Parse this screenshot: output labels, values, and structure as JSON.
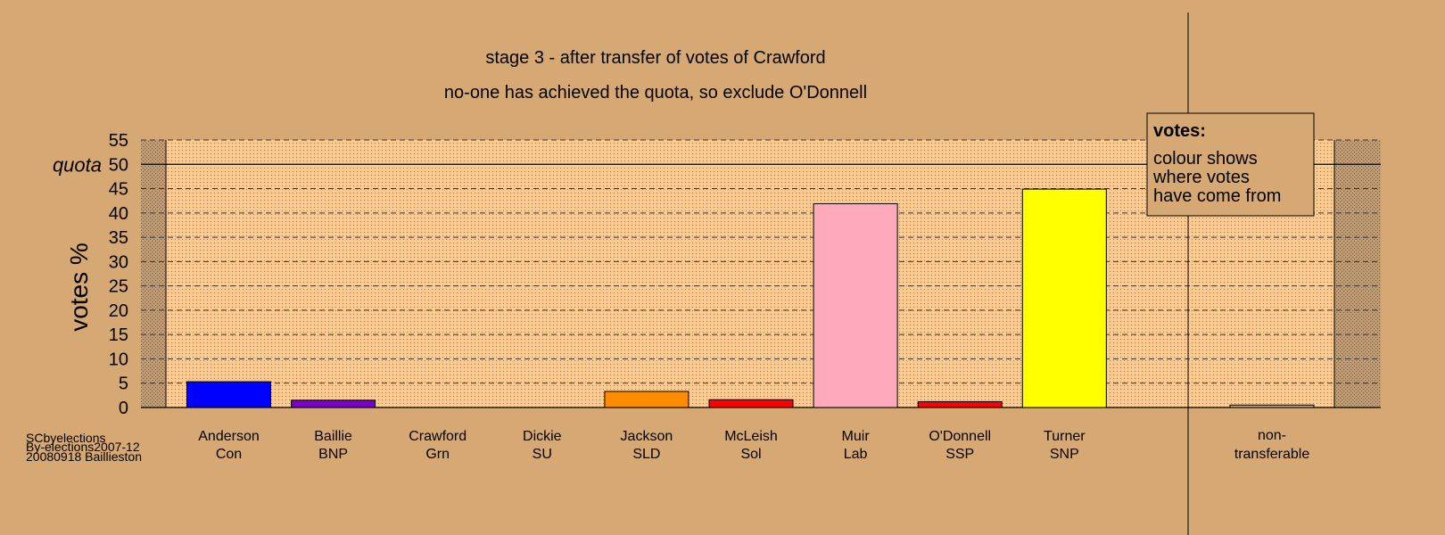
{
  "chart_data": {
    "type": "bar",
    "title": "stage 3 - after transfer of votes of Crawford",
    "subtitle": "no-one has achieved the quota, so exclude O'Donnell",
    "ylabel": "votes %",
    "ylim": [
      0,
      55
    ],
    "yticks": [
      0,
      5,
      10,
      15,
      20,
      25,
      30,
      35,
      40,
      45,
      50,
      55
    ],
    "quota": {
      "value": 50,
      "label": "quota"
    },
    "grid": true,
    "categories": [
      {
        "name": "Anderson",
        "party": "Con",
        "value": 5.3,
        "color": "#0000FF"
      },
      {
        "name": "Baillie",
        "party": "BNP",
        "value": 1.5,
        "color": "#7B00CC"
      },
      {
        "name": "Crawford",
        "party": "Grn",
        "value": 0,
        "color": "#00AA00"
      },
      {
        "name": "Dickie",
        "party": "SU",
        "value": 0,
        "color": "#FF0000"
      },
      {
        "name": "Jackson",
        "party": "SLD",
        "value": 3.3,
        "color": "#FF8C00"
      },
      {
        "name": "McLeish",
        "party": "Sol",
        "value": 1.6,
        "color": "#FF0000"
      },
      {
        "name": "Muir",
        "party": "Lab",
        "value": 41.9,
        "color": "#FFAABB"
      },
      {
        "name": "O'Donnell",
        "party": "SSP",
        "value": 1.2,
        "color": "#FF0000"
      },
      {
        "name": "Turner",
        "party": "SNP",
        "value": 44.9,
        "color": "#FFFF00"
      }
    ],
    "nontransferable": {
      "line1": "non-",
      "line2": "transferable",
      "value": 0.5,
      "color": "#D5A874"
    },
    "legend": {
      "title": "votes:",
      "lines": [
        "colour shows",
        "where votes",
        "have come from"
      ],
      "placement": "top-right"
    },
    "source": [
      "SCbyelections",
      "By-elections2007-12",
      "20080918 Baillieston"
    ]
  },
  "colors": {
    "background": "#D5A874",
    "plot_area": "#FFC98A"
  }
}
